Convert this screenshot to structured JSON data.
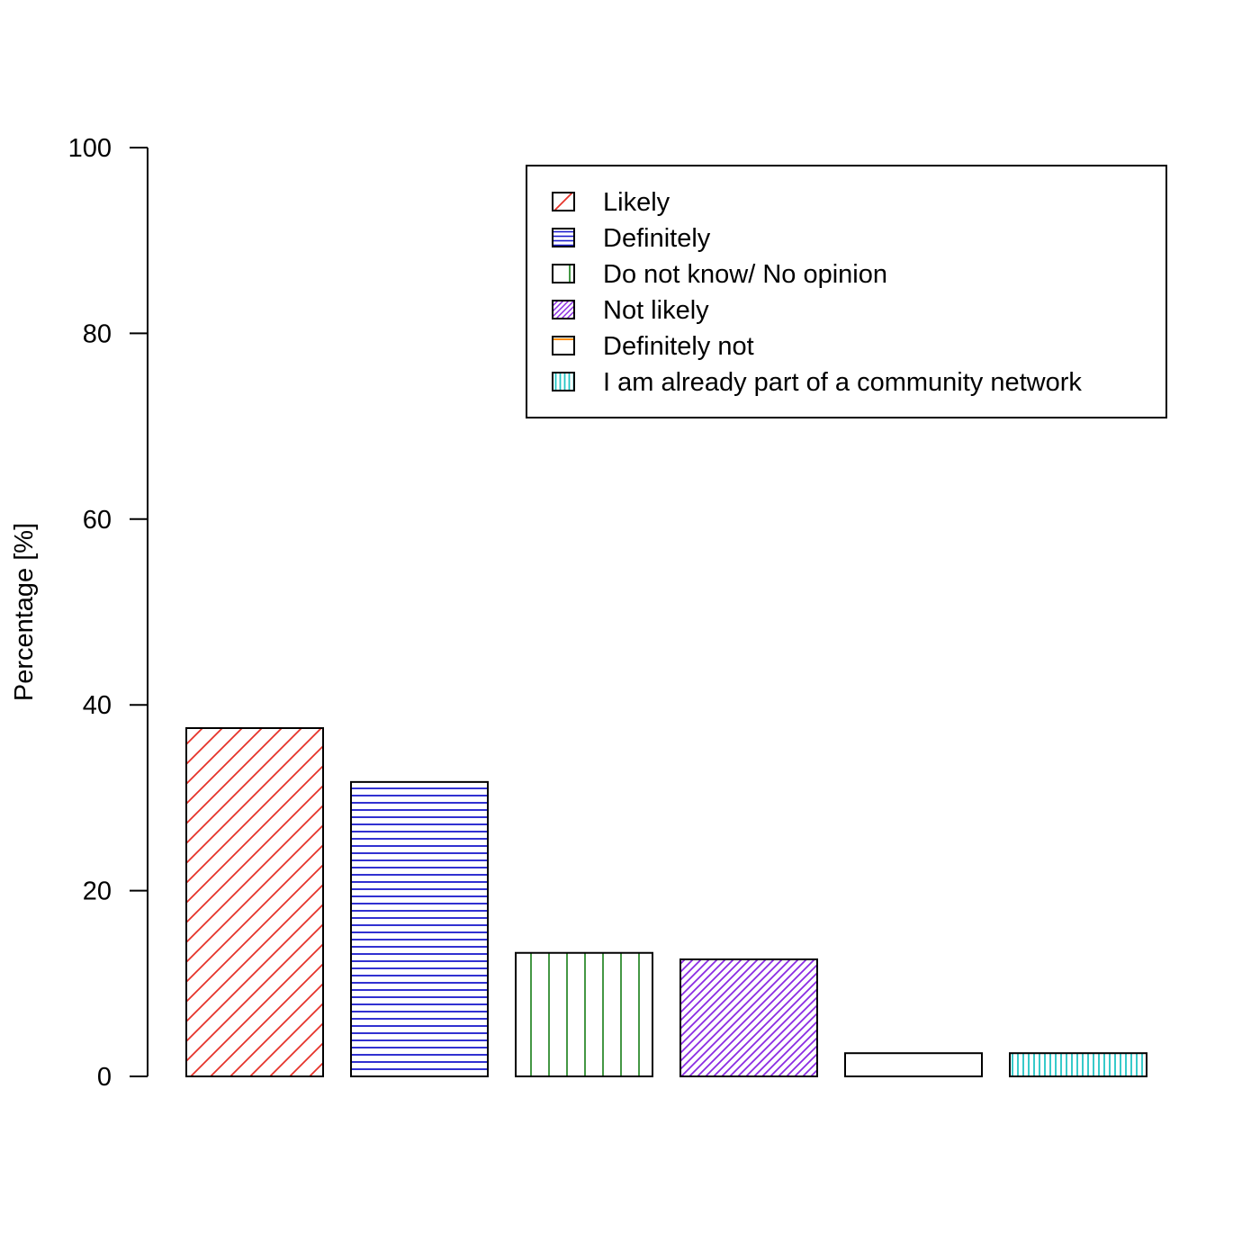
{
  "chart_data": {
    "type": "bar",
    "title": "",
    "xlabel": "",
    "ylabel": "Percentage [%]",
    "ylim": [
      0,
      100
    ],
    "yticks": [
      0,
      20,
      40,
      60,
      80,
      100
    ],
    "grid": false,
    "legend_position": "top-right",
    "categories": [
      "Likely",
      "Definitely",
      "Do not know/ No opinion",
      "Not likely",
      "Definitely not",
      "I am already part of a community network"
    ],
    "values": [
      37.5,
      31.7,
      13.3,
      12.6,
      2.5,
      2.5
    ],
    "colors": [
      "#e6332a",
      "#1a1acc",
      "#2e8b2e",
      "#8a2be2",
      "#ff8c00",
      "#22c4c4"
    ],
    "patterns": [
      "diag-wide",
      "horizontal",
      "vertical",
      "diag-dense",
      "horizontal-sparse",
      "vertical-dense"
    ]
  }
}
